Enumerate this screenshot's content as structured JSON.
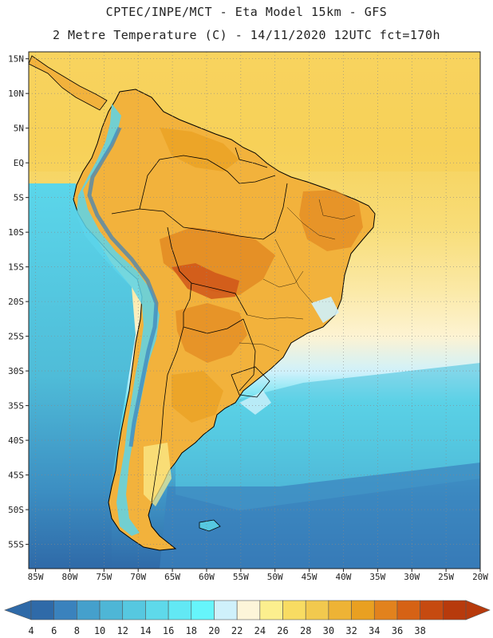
{
  "header": {
    "title_line1": "CPTEC/INPE/MCT -  Eta Model 15km - GFS",
    "title_line2": "2 Metre Temperature (C) - 14/11/2020 12UTC fct=170h"
  },
  "map": {
    "variable": "2 Metre Temperature",
    "units": "C",
    "lon_range": [
      -86,
      -20
    ],
    "lat_range": [
      -58.5,
      16
    ],
    "lon_ticks": [
      {
        "value": -85,
        "label": "85W"
      },
      {
        "value": -80,
        "label": "80W"
      },
      {
        "value": -75,
        "label": "75W"
      },
      {
        "value": -70,
        "label": "70W"
      },
      {
        "value": -65,
        "label": "65W"
      },
      {
        "value": -60,
        "label": "60W"
      },
      {
        "value": -55,
        "label": "55W"
      },
      {
        "value": -50,
        "label": "50W"
      },
      {
        "value": -45,
        "label": "45W"
      },
      {
        "value": -40,
        "label": "40W"
      },
      {
        "value": -35,
        "label": "35W"
      },
      {
        "value": -30,
        "label": "30W"
      },
      {
        "value": -25,
        "label": "25W"
      },
      {
        "value": -20,
        "label": "20W"
      }
    ],
    "lat_ticks": [
      {
        "value": 15,
        "label": "15N"
      },
      {
        "value": 10,
        "label": "10N"
      },
      {
        "value": 5,
        "label": "5N"
      },
      {
        "value": 0,
        "label": "EQ"
      },
      {
        "value": -5,
        "label": "5S"
      },
      {
        "value": -10,
        "label": "10S"
      },
      {
        "value": -15,
        "label": "15S"
      },
      {
        "value": -20,
        "label": "20S"
      },
      {
        "value": -25,
        "label": "25S"
      },
      {
        "value": -30,
        "label": "30S"
      },
      {
        "value": -35,
        "label": "35S"
      },
      {
        "value": -40,
        "label": "40S"
      },
      {
        "value": -45,
        "label": "45S"
      },
      {
        "value": -50,
        "label": "50S"
      },
      {
        "value": -55,
        "label": "55S"
      }
    ],
    "colors": {
      "land_warm": "#f2b23c",
      "land_hot": "#e38a22",
      "land_hottest": "#d0561a",
      "land_mild": "#f6d35e",
      "tropical_ocean": "#f8d86a",
      "gridline": "#888888",
      "coastline": "#000000"
    }
  },
  "colorbar": {
    "ticks": [
      "4",
      "6",
      "8",
      "10",
      "12",
      "14",
      "16",
      "18",
      "20",
      "22",
      "24",
      "26",
      "28",
      "30",
      "32",
      "34",
      "36",
      "38"
    ],
    "colors": [
      "#2f6aa8",
      "#3a82bd",
      "#45a0cc",
      "#4eb6d6",
      "#56c8e0",
      "#5ed9ea",
      "#62e8f4",
      "#66f5fb",
      "#cff1fb",
      "#fdf5d9",
      "#fcef8e",
      "#f8dc62",
      "#f2c94e",
      "#eeb335",
      "#e9a021",
      "#e2821d",
      "#d66215",
      "#c64a10",
      "#b73a0c"
    ],
    "left_arrow_color": "#2f6aa8",
    "right_arrow_color": "#b73a0c"
  }
}
